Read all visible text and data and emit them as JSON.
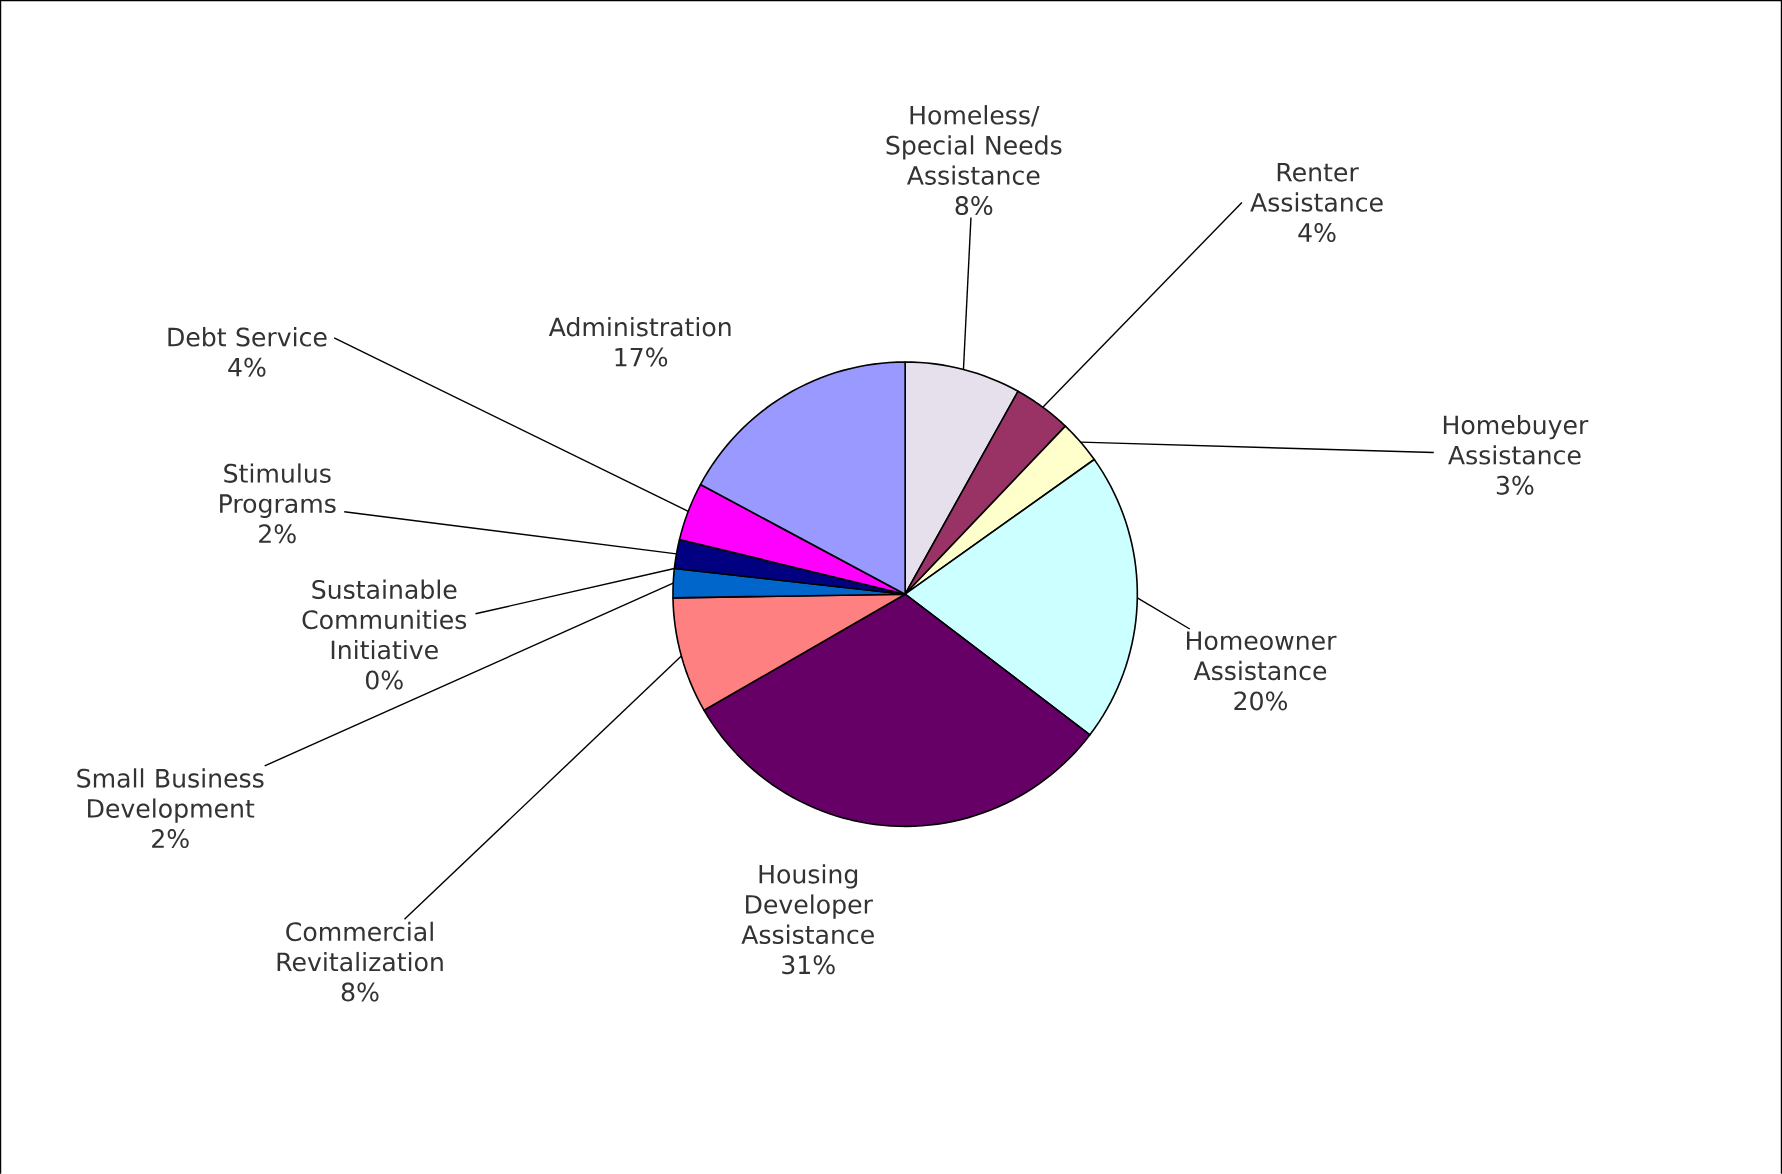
{
  "chart_data": {
    "type": "pie",
    "categories": [
      "Homeless/ Special Needs Assistance",
      "Renter Assistance",
      "Homebuyer Assistance",
      "Homeowner Assistance",
      "Housing Developer Assistance",
      "Commercial Revitalization",
      "Small Business Development",
      "Sustainable Communities Initiative",
      "Stimulus Programs",
      "Debt Service",
      "Administration"
    ],
    "values": [
      8,
      4,
      3,
      20,
      31,
      8,
      2,
      0,
      2,
      4,
      17
    ],
    "value_labels": [
      "8%",
      "4%",
      "3%",
      "20%",
      "31%",
      "8%",
      "2%",
      "0%",
      "2%",
      "4%",
      "17%"
    ],
    "colors": [
      "#e6e0ec",
      "#993366",
      "#ffffcc",
      "#ccffff",
      "#660066",
      "#ff8080",
      "#0066cc",
      "#ccccff",
      "#000080",
      "#ff00ff",
      "#9999ff"
    ]
  }
}
